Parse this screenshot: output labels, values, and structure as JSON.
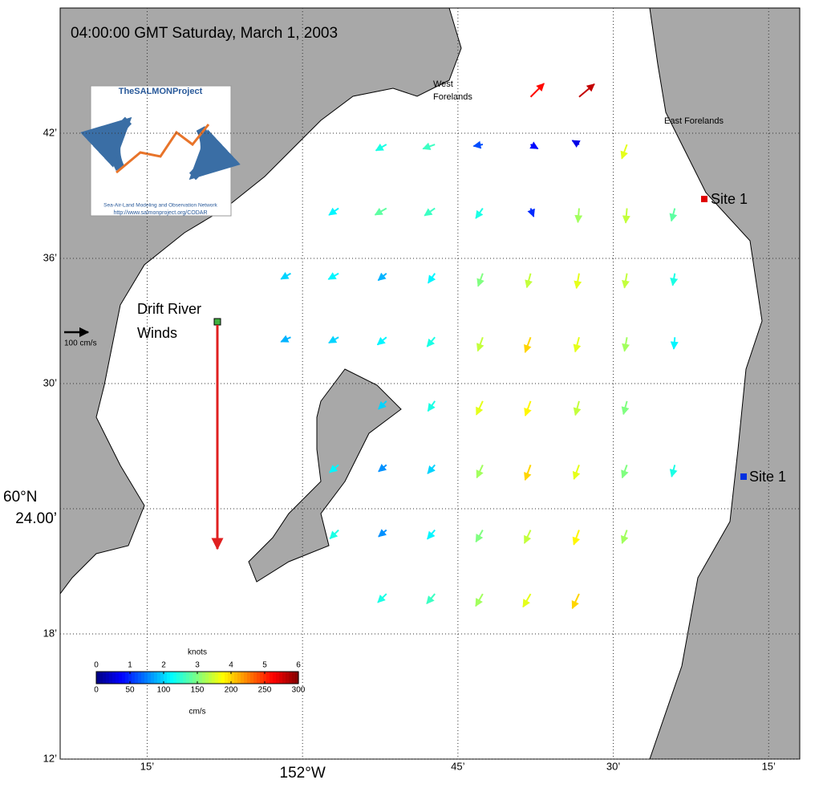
{
  "chart_data": {
    "type": "vector-map",
    "title": "04:00:00 GMT Saturday, March 1, 2003",
    "xlim": [
      -152.39,
      -151.2
    ],
    "ylim": [
      60.2,
      60.8
    ],
    "xticks": [
      {
        "value": -152.25,
        "label": "15’"
      },
      {
        "value": -152,
        "label": "152°W"
      },
      {
        "value": -151.75,
        "label": "45’"
      },
      {
        "value": -151.5,
        "label": "30’"
      },
      {
        "value": -151.25,
        "label": "15’"
      }
    ],
    "yticks": [
      {
        "value": 60.2,
        "label": "12’"
      },
      {
        "value": 60.3,
        "label": "18’"
      },
      {
        "value": 60.4,
        "label": "24.00’"
      },
      {
        "value": 60.5,
        "label": "30’"
      },
      {
        "value": 60.6,
        "label": "36’"
      },
      {
        "value": 60.7,
        "label": "42’"
      }
    ],
    "lat_degree_label": "60°N",
    "grid": true,
    "places": [
      "West",
      "Forelands",
      "East Forelands",
      "Site 1",
      "Site 1"
    ],
    "wind": {
      "label": [
        "Drift River",
        "Winds"
      ],
      "speed": 930,
      "direction": 180,
      "color": "#e02020"
    },
    "scale_arrow": {
      "value": 100,
      "label": "100 cm/s"
    },
    "logo": {
      "title": "TheSALMONProject",
      "subtitle": "Sea-Air-Land Modeling and Observation Network",
      "url": "http://www.salmonproject.org/CODAR"
    },
    "colorbar": {
      "label_top": "knots",
      "label_bottom": "cm/s",
      "clim": [
        0,
        300
      ],
      "ticks": [
        0,
        50,
        100,
        150,
        200,
        250,
        300
      ],
      "knots_lim": [
        0,
        6
      ],
      "knots_ticks": [
        0,
        1,
        2,
        3,
        4,
        5,
        6
      ]
    },
    "currents": {
      "lon": [
        -151.633,
        -151.555,
        -151.865,
        -151.787,
        -151.71,
        -151.633,
        -151.555,
        -151.478,
        -151.942,
        -151.865,
        -151.787,
        -151.71,
        -151.633,
        -151.555,
        -151.478,
        -151.401,
        -152.019,
        -151.942,
        -151.865,
        -151.787,
        -151.71,
        -151.633,
        -151.555,
        -151.478,
        -151.401,
        -152.019,
        -151.942,
        -151.865,
        -151.787,
        -151.71,
        -151.633,
        -151.555,
        -151.478,
        -151.401,
        -151.865,
        -151.787,
        -151.71,
        -151.633,
        -151.555,
        -151.478,
        -151.942,
        -151.865,
        -151.787,
        -151.71,
        -151.633,
        -151.555,
        -151.478,
        -151.401,
        -151.942,
        -151.865,
        -151.787,
        -151.71,
        -151.633,
        -151.555,
        -151.478,
        -151.865,
        -151.787,
        -151.71,
        -151.633,
        -151.555
      ],
      "lat": [
        60.729,
        60.729,
        60.691,
        60.691,
        60.691,
        60.691,
        60.691,
        60.691,
        60.64,
        60.64,
        60.64,
        60.64,
        60.64,
        60.64,
        60.64,
        60.64,
        60.588,
        60.588,
        60.588,
        60.588,
        60.588,
        60.588,
        60.588,
        60.588,
        60.588,
        60.537,
        60.537,
        60.537,
        60.537,
        60.537,
        60.537,
        60.537,
        60.537,
        60.537,
        60.486,
        60.486,
        60.486,
        60.486,
        60.486,
        60.486,
        60.435,
        60.435,
        60.435,
        60.435,
        60.435,
        60.435,
        60.435,
        60.435,
        60.383,
        60.383,
        60.383,
        60.383,
        60.383,
        60.383,
        60.383,
        60.332,
        60.332,
        60.332,
        60.332,
        60.332
      ],
      "speed": [
        260,
        280,
        120,
        130,
        60,
        40,
        30,
        180,
        110,
        140,
        130,
        120,
        50,
        160,
        170,
        140,
        100,
        110,
        90,
        110,
        150,
        170,
        180,
        170,
        120,
        90,
        100,
        110,
        120,
        170,
        200,
        180,
        160,
        110,
        100,
        120,
        180,
        190,
        170,
        150,
        110,
        80,
        100,
        160,
        200,
        180,
        150,
        120,
        120,
        80,
        110,
        150,
        170,
        190,
        160,
        120,
        130,
        160,
        180,
        200
      ],
      "direction": [
        45,
        50,
        240,
        250,
        260,
        120,
        300,
        200,
        235,
        240,
        235,
        215,
        160,
        185,
        185,
        195,
        240,
        240,
        230,
        215,
        200,
        195,
        190,
        190,
        190,
        245,
        240,
        230,
        220,
        200,
        200,
        195,
        190,
        185,
        225,
        215,
        205,
        200,
        195,
        195,
        230,
        230,
        220,
        205,
        200,
        200,
        200,
        195,
        225,
        230,
        220,
        210,
        205,
        200,
        200,
        225,
        220,
        210,
        210,
        205
      ]
    }
  }
}
